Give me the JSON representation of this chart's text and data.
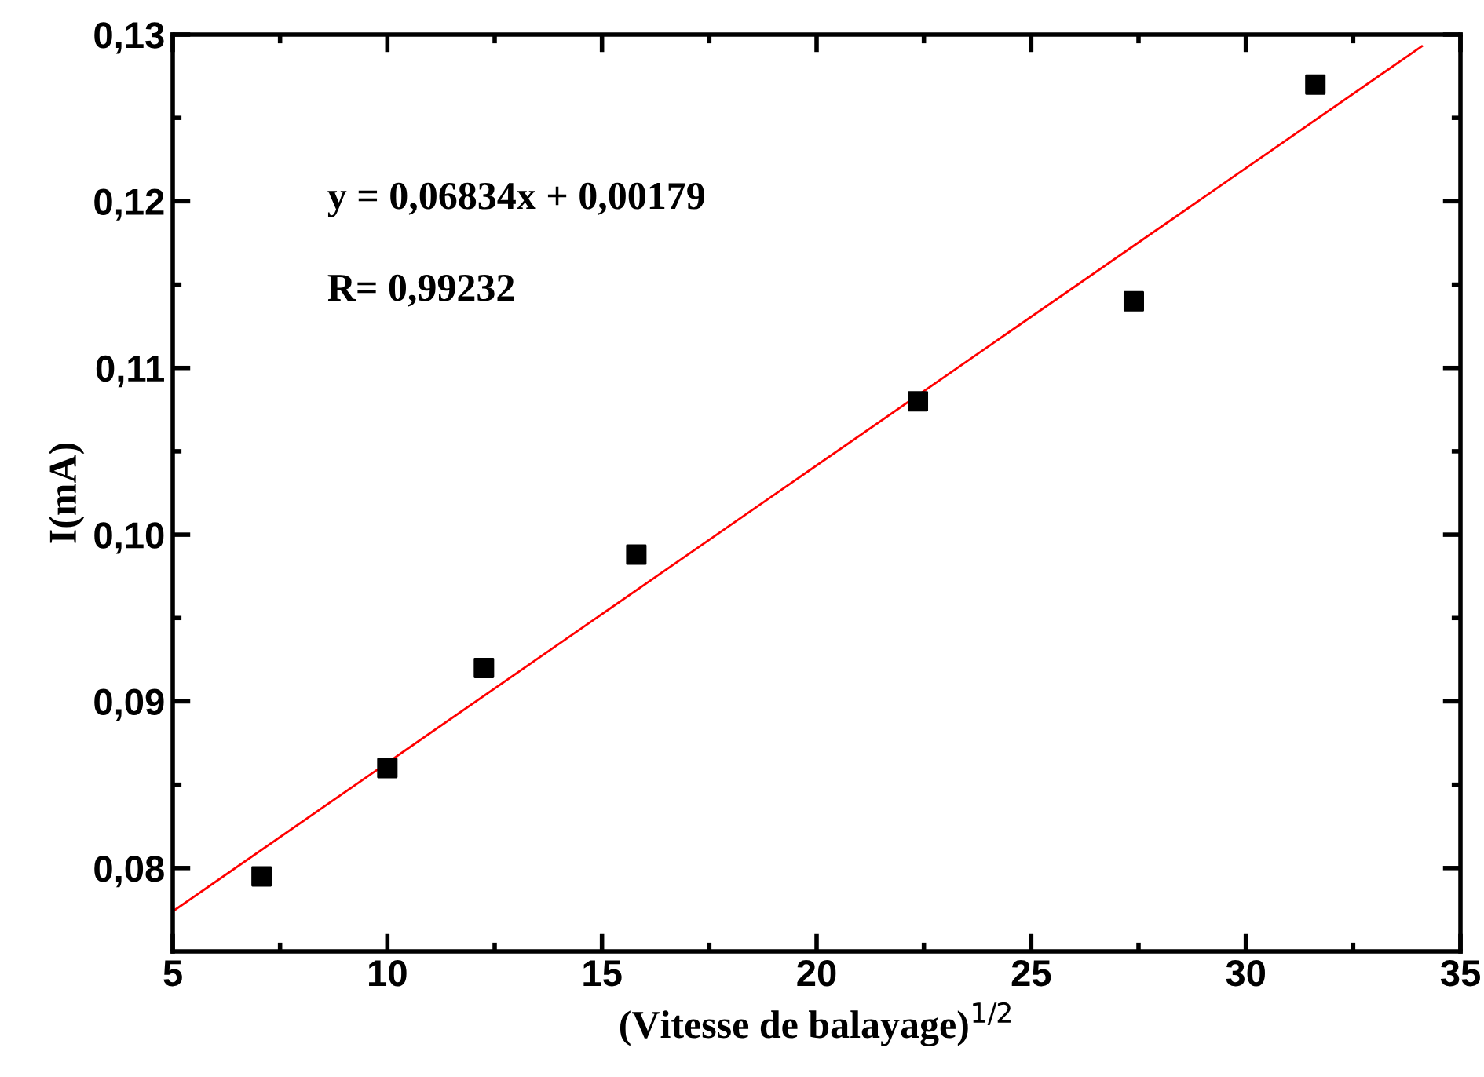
{
  "chart_data": {
    "type": "scatter",
    "xlabel": "(Vitesse de balayage)$^{1/2}$",
    "ylabel": "I(mA)",
    "series": [
      {
        "color": "#000000",
        "marker": "square",
        "x": [
          7.07,
          10,
          12.25,
          15.8,
          22.36,
          27.39,
          31.62
        ],
        "values": [
          0.0795,
          0.086,
          0.092,
          0.0988,
          0.108,
          0.114,
          0.127
        ]
      },
      {
        "type": "line",
        "color": "#ff0000",
        "marker": "none",
        "line_style": "solid",
        "x": [
          5,
          34.1
        ],
        "values": [
          0.0774,
          0.1293
        ]
      }
    ],
    "annotations": [
      "y = 0,06834x + 0,00179",
      "R= 0,99232"
    ],
    "xlim": [
      5,
      35
    ],
    "ylim": [
      0.075,
      0.13
    ],
    "xticks": [
      5,
      {
        "value": 7.5,
        "label": null
      },
      10,
      {
        "value": 12.5,
        "label": null
      },
      15,
      {
        "value": 17.5,
        "label": null
      },
      20,
      {
        "value": 22.5,
        "label": null
      },
      25,
      {
        "value": 27.5,
        "label": null
      },
      30,
      {
        "value": 32.5,
        "label": null
      },
      35
    ],
    "yticks": [
      {
        "value": 0.08,
        "label": "0,08"
      },
      {
        "value": 0.085,
        "label": null
      },
      {
        "value": 0.09,
        "label": "0,09"
      },
      {
        "value": 0.095,
        "label": null
      },
      {
        "value": 0.1,
        "label": "0,10"
      },
      {
        "value": 0.105,
        "label": null
      },
      {
        "value": 0.11,
        "label": "0,11"
      },
      {
        "value": 0.115,
        "label": null
      },
      {
        "value": 0.12,
        "label": "0,12"
      },
      {
        "value": 0.125,
        "label": null
      },
      {
        "value": 0.13,
        "label": "0,13"
      }
    ],
    "grid": false,
    "legend": false
  }
}
